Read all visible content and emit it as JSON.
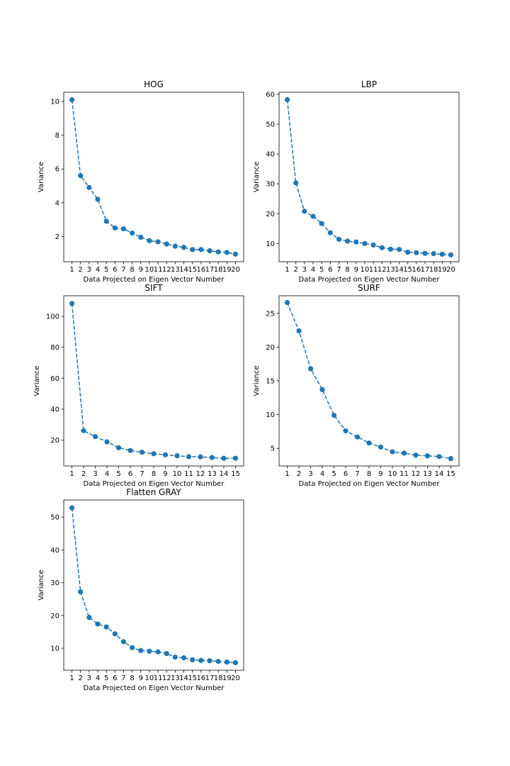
{
  "chart_data": [
    {
      "type": "line",
      "title": "HOG",
      "xlabel": "Data Projected on Eigen Vector Number",
      "ylabel": "Variance",
      "x": [
        1,
        2,
        3,
        4,
        5,
        6,
        7,
        8,
        9,
        10,
        11,
        12,
        13,
        14,
        15,
        16,
        17,
        18,
        19,
        20
      ],
      "values": [
        10.1,
        5.6,
        4.9,
        4.2,
        2.9,
        2.5,
        2.45,
        2.2,
        1.95,
        1.75,
        1.68,
        1.55,
        1.42,
        1.35,
        1.22,
        1.22,
        1.15,
        1.08,
        1.05,
        0.95
      ],
      "yticks": [
        2,
        4,
        6,
        8,
        10
      ],
      "ylim": [
        0.5,
        10.55
      ],
      "xlim": [
        0.05,
        20.95
      ]
    },
    {
      "type": "line",
      "title": "LBP",
      "xlabel": "Data Projected on Eigen Vector Number",
      "ylabel": "Variance",
      "x": [
        1,
        2,
        3,
        4,
        5,
        6,
        7,
        8,
        9,
        10,
        11,
        12,
        13,
        14,
        15,
        16,
        17,
        18,
        19,
        20
      ],
      "values": [
        58.2,
        30.3,
        20.8,
        19.1,
        16.7,
        13.6,
        11.4,
        10.8,
        10.5,
        10.0,
        9.5,
        8.6,
        8.1,
        8.0,
        7.1,
        6.9,
        6.7,
        6.6,
        6.4,
        6.2
      ],
      "yticks": [
        10,
        20,
        30,
        40,
        50,
        60
      ],
      "ylim": [
        3.9,
        60.7
      ],
      "xlim": [
        0.05,
        20.95
      ]
    },
    {
      "type": "line",
      "title": "SIFT",
      "xlabel": "Data Projected on Eigen Vector Number",
      "ylabel": "Variance",
      "x": [
        1,
        2,
        3,
        4,
        5,
        6,
        7,
        8,
        9,
        10,
        11,
        12,
        13,
        14,
        15
      ],
      "values": [
        108.3,
        26.1,
        22.3,
        18.9,
        15.1,
        13.3,
        12.2,
        11.2,
        10.5,
        9.9,
        9.3,
        9.2,
        8.8,
        8.3,
        8.3
      ],
      "yticks": [
        20,
        40,
        60,
        80,
        100
      ],
      "ylim": [
        3.3,
        113.3
      ],
      "xlim": [
        0.3,
        15.7
      ]
    },
    {
      "type": "line",
      "title": "SURF",
      "xlabel": "Data Projected on Eigen Vector Number",
      "ylabel": "Variance",
      "x": [
        1,
        2,
        3,
        4,
        5,
        6,
        7,
        8,
        9,
        10,
        11,
        12,
        13,
        14,
        15
      ],
      "values": [
        26.6,
        22.4,
        16.8,
        13.7,
        9.9,
        7.6,
        6.7,
        5.8,
        5.2,
        4.5,
        4.3,
        4.0,
        3.9,
        3.8,
        3.5
      ],
      "yticks": [
        5,
        10,
        15,
        20,
        25
      ],
      "ylim": [
        2.4,
        27.6
      ],
      "xlim": [
        0.3,
        15.7
      ]
    },
    {
      "type": "line",
      "title": "Flatten GRAY",
      "xlabel": "Data Projected on Eigen Vector Number",
      "ylabel": "Variance",
      "x": [
        1,
        2,
        3,
        4,
        5,
        6,
        7,
        8,
        9,
        10,
        11,
        12,
        13,
        14,
        15,
        16,
        17,
        18,
        19,
        20
      ],
      "values": [
        52.8,
        27.2,
        19.4,
        17.4,
        16.5,
        14.4,
        12.0,
        10.2,
        9.3,
        9.1,
        8.9,
        8.4,
        7.3,
        7.1,
        6.5,
        6.3,
        6.2,
        6.0,
        5.8,
        5.6
      ],
      "yticks": [
        10,
        20,
        30,
        40,
        50
      ],
      "ylim": [
        3.3,
        55.2
      ],
      "xlim": [
        0.05,
        20.95
      ]
    }
  ]
}
